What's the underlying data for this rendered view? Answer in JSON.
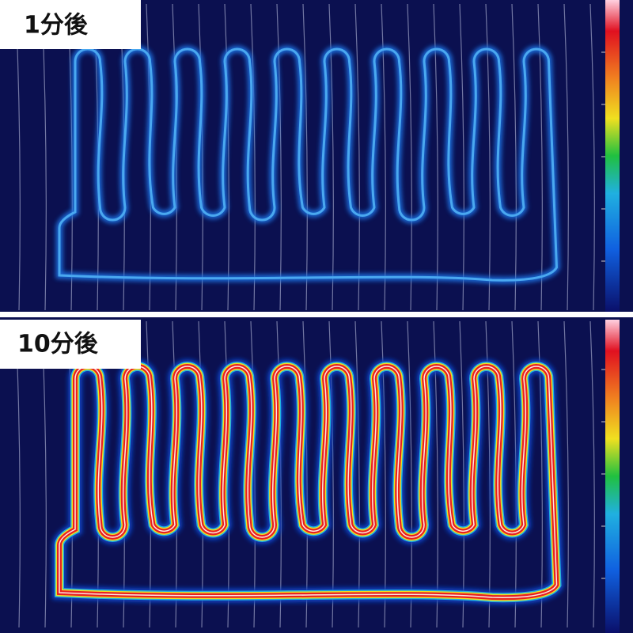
{
  "panels": [
    {
      "label": "1分後"
    },
    {
      "label": "10分後"
    }
  ]
}
